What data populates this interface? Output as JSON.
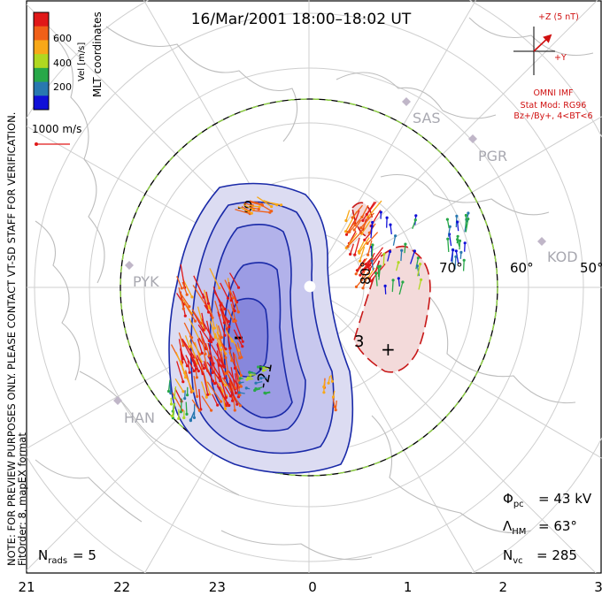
{
  "header": {
    "title": "16/Mar/2001  18:00–18:02  UT"
  },
  "side_notes": {
    "preview": "NOTE: FOR PREVIEW PURPOSES ONLY. PLEASE CONTACT VT-SD STAFF FOR VERIFICATION.",
    "fit": "FitOrder: 8, mapEX format"
  },
  "colorbar": {
    "title": "MLT coordinates",
    "unit_label": "Vel [m/s]",
    "ticks": [
      "600",
      "400",
      "200"
    ],
    "colors": [
      "#e01818",
      "#f06018",
      "#f8a818",
      "#b0d820",
      "#28a848",
      "#2878b0",
      "#1010d8"
    ]
  },
  "scale_vector": {
    "label": "1000 m/s",
    "color": "#e01818"
  },
  "imf": {
    "z_label": "+Z (5 nT)",
    "y_label": "+Y",
    "source": "OMNI IMF",
    "stat_model": "Stat Mod: RG96",
    "conditions": "Bz+/By+, 4<BT<6",
    "color": "#d01010"
  },
  "stations": [
    "SAS",
    "PGR",
    "KOD",
    "PYK",
    "HAN"
  ],
  "latitudes": [
    "80°",
    "70°",
    "60°",
    "50°"
  ],
  "mlt_axis": [
    "21",
    "22",
    "23",
    "0",
    "1",
    "2",
    "3"
  ],
  "contours": {
    "negative_labels": [
      "-9",
      "-21"
    ],
    "positive_labels": [
      "3"
    ],
    "minimum_marker": "–",
    "maximum_marker": "+",
    "colors": {
      "negative": "#1a2aa8",
      "positive": "#c81818"
    }
  },
  "stats": {
    "phi_pc_value": "= 43 kV",
    "lambda_hm_value": "= 63°",
    "nvc_value": "= 285",
    "nrads_value": "= 5"
  }
}
